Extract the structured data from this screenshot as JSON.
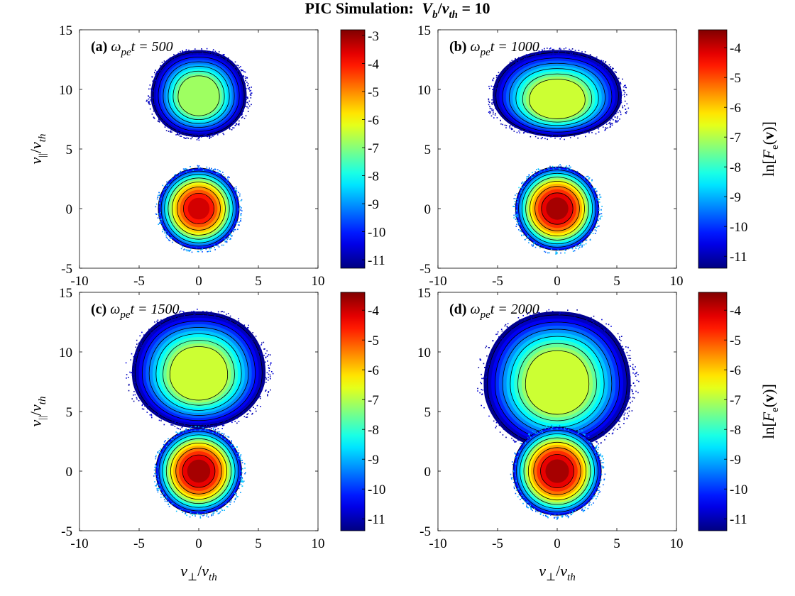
{
  "figure": {
    "title_prefix": "PIC Simulation:",
    "title_var1": "V",
    "title_sub1": "b",
    "title_sep": "/",
    "title_var2": "v",
    "title_sub2": "th",
    "title_suffix": " = 10"
  },
  "axes": {
    "xlabel_var": "v",
    "xlabel_sub": "⊥",
    "xlabel_sep": "/",
    "xlabel_var2": "v",
    "xlabel_sub2": "th",
    "ylabel_var": "v",
    "ylabel_sub": "||",
    "ylabel_sep": "/",
    "ylabel_var2": "v",
    "ylabel_sub2": "th",
    "colorbar_label_pre": "ln[",
    "colorbar_label_F": "F",
    "colorbar_label_sub": "e",
    "colorbar_label_mid": "(",
    "colorbar_label_v": "v",
    "colorbar_label_post": ")]"
  },
  "chart_data": [
    {
      "type": "heatmap",
      "panel": "(a)",
      "omega": "ω",
      "omega_sub": "pe",
      "time_label": "t = 500",
      "time": 500,
      "xlim": [
        -10,
        10
      ],
      "ylim": [
        -5,
        15
      ],
      "xticks": [
        "-10",
        "-5",
        "0",
        "5",
        "10"
      ],
      "yticks": [
        "-5",
        "0",
        "5",
        "10",
        "15"
      ],
      "clim": [
        -11.3,
        -2.8
      ],
      "cticks": [
        "-3",
        "-4",
        "-5",
        "-6",
        "-7",
        "-8",
        "-9",
        "-10",
        "-11"
      ],
      "beam": {
        "center_y": 9.5,
        "half_width": 4.3,
        "top": 13.3,
        "bottom": 6.0,
        "core_value": -6.8
      },
      "core": {
        "center_y": 0,
        "radius": 3.4,
        "peak_value": -3.5
      },
      "contour_levels": [
        -11,
        -10,
        -9,
        -8,
        -7,
        -6,
        -5,
        -4,
        -3
      ]
    },
    {
      "type": "heatmap",
      "panel": "(b)",
      "omega": "ω",
      "omega_sub": "pe",
      "time_label": "t = 1000",
      "time": 1000,
      "xlim": [
        -10,
        10
      ],
      "ylim": [
        -5,
        15
      ],
      "xticks": [
        "-10",
        "-5",
        "0",
        "5",
        "10"
      ],
      "yticks": [
        "-5",
        "0",
        "5",
        "10",
        "15"
      ],
      "clim": [
        -11.4,
        -3.4
      ],
      "cticks": [
        "-4",
        "-5",
        "-6",
        "-7",
        "-8",
        "-9",
        "-10",
        "-11"
      ],
      "beam": {
        "center_y": 9.0,
        "half_width": 5.8,
        "top": 13.3,
        "bottom": 6.0,
        "core_value": -6.8
      },
      "core": {
        "center_y": 0,
        "radius": 3.5,
        "peak_value": -3.7
      },
      "contour_levels": [
        -11,
        -10,
        -9,
        -8,
        -7,
        -6,
        -5,
        -4
      ]
    },
    {
      "type": "heatmap",
      "panel": "(c)",
      "omega": "ω",
      "omega_sub": "pe",
      "time_label": "t = 1500",
      "time": 1500,
      "xlim": [
        -10,
        10
      ],
      "ylim": [
        -5,
        15
      ],
      "xticks": [
        "-10",
        "-5",
        "0",
        "5",
        "10"
      ],
      "yticks": [
        "-5",
        "0",
        "5",
        "10",
        "15"
      ],
      "clim": [
        -11.4,
        -3.4
      ],
      "cticks": [
        "-4",
        "-5",
        "-6",
        "-7",
        "-8",
        "-9",
        "-10",
        "-11"
      ],
      "beam": {
        "center_y": 8.2,
        "half_width": 6.0,
        "top": 13.4,
        "bottom": 3.6,
        "core_value": -6.8
      },
      "core": {
        "center_y": 0,
        "radius": 3.6,
        "peak_value": -3.7
      },
      "contour_levels": [
        -11,
        -10,
        -9,
        -8,
        -7,
        -6,
        -5,
        -4
      ]
    },
    {
      "type": "heatmap",
      "panel": "(d)",
      "omega": "ω",
      "omega_sub": "pe",
      "time_label": "t = 2000",
      "time": 2000,
      "xlim": [
        -10,
        10
      ],
      "ylim": [
        -5,
        15
      ],
      "xticks": [
        "-10",
        "-5",
        "0",
        "5",
        "10"
      ],
      "yticks": [
        "-5",
        "0",
        "5",
        "10",
        "15"
      ],
      "clim": [
        -11.4,
        -3.4
      ],
      "cticks": [
        "-4",
        "-5",
        "-6",
        "-7",
        "-8",
        "-9",
        "-10",
        "-11"
      ],
      "beam": {
        "center_y": 7.6,
        "half_width": 6.6,
        "top": 13.4,
        "bottom": 1.8,
        "core_value": -6.8
      },
      "core": {
        "center_y": 0,
        "radius": 3.7,
        "peak_value": -3.7
      },
      "contour_levels": [
        -11,
        -10,
        -9,
        -8,
        -7,
        -6,
        -5,
        -4
      ]
    }
  ]
}
